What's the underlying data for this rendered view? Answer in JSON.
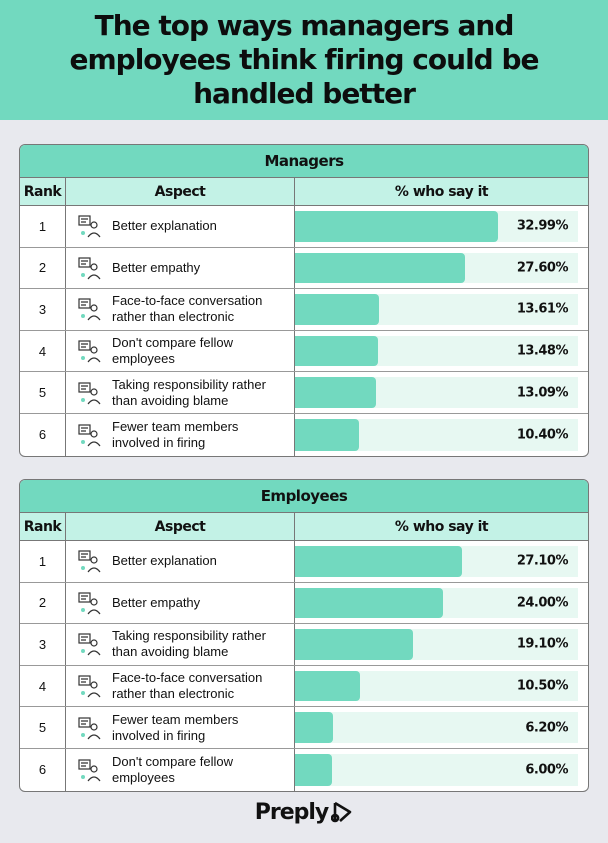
{
  "title": "The top ways managers and employees think firing could be handled better",
  "columns": {
    "rank": "Rank",
    "aspect": "Aspect",
    "pct": "% who say it"
  },
  "brand": "Preply",
  "colors": {
    "accent": "#72d9bf",
    "header_light": "#c3f2e6",
    "track": "#e7f8f2",
    "background": "#e8e9ee"
  },
  "chart_data": [
    {
      "type": "bar",
      "title": "Managers",
      "unit": "%",
      "rows": [
        {
          "rank": 1,
          "aspect": "Better explanation",
          "value": 32.99,
          "label": "32.99%",
          "icon": "explanation-icon"
        },
        {
          "rank": 2,
          "aspect": "Better empathy",
          "value": 27.6,
          "label": "27.60%",
          "icon": "empathy-icon"
        },
        {
          "rank": 3,
          "aspect": "Face-to-face conversation rather than electronic",
          "value": 13.61,
          "label": "13.61%",
          "icon": "conversation-icon"
        },
        {
          "rank": 4,
          "aspect": "Don't compare fellow employees",
          "value": 13.48,
          "label": "13.48%",
          "icon": "compare-icon"
        },
        {
          "rank": 5,
          "aspect": "Taking responsibility rather than avoiding blame",
          "value": 13.09,
          "label": "13.09%",
          "icon": "responsibility-icon"
        },
        {
          "rank": 6,
          "aspect": "Fewer team members involved in firing",
          "value": 10.4,
          "label": "10.40%",
          "icon": "team-icon"
        }
      ]
    },
    {
      "type": "bar",
      "title": "Employees",
      "unit": "%",
      "rows": [
        {
          "rank": 1,
          "aspect": "Better explanation",
          "value": 27.1,
          "label": "27.10%",
          "icon": "explanation-icon"
        },
        {
          "rank": 2,
          "aspect": "Better empathy",
          "value": 24.0,
          "label": "24.00%",
          "icon": "empathy-icon"
        },
        {
          "rank": 3,
          "aspect": "Taking responsibility rather than avoiding blame",
          "value": 19.1,
          "label": "19.10%",
          "icon": "responsibility-icon"
        },
        {
          "rank": 4,
          "aspect": "Face-to-face conversation rather than electronic",
          "value": 10.5,
          "label": "10.50%",
          "icon": "conversation-icon"
        },
        {
          "rank": 5,
          "aspect": "Fewer team members involved in firing",
          "value": 6.2,
          "label": "6.20%",
          "icon": "team-icon"
        },
        {
          "rank": 6,
          "aspect": "Don't compare fellow employees",
          "value": 6.0,
          "label": "6.00%",
          "icon": "compare-icon"
        }
      ]
    }
  ]
}
